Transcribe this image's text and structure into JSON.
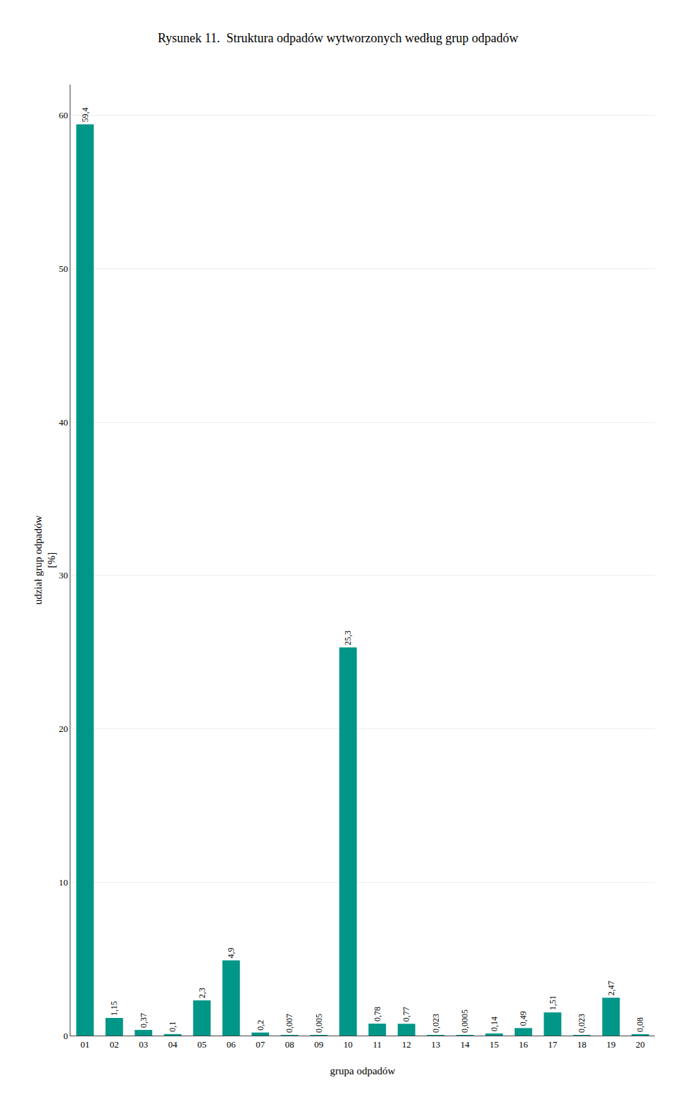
{
  "chart_data": {
    "type": "bar",
    "title": "Rysunek 11.  Struktura odpadów wytworzonych według grup odpadów",
    "xlabel": "grupa odpadów",
    "ylabel": "udział grup odpadów\n[%]",
    "categories": [
      "01",
      "02",
      "03",
      "04",
      "05",
      "06",
      "07",
      "08",
      "09",
      "10",
      "11",
      "12",
      "13",
      "14",
      "15",
      "16",
      "17",
      "18",
      "19",
      "20"
    ],
    "values": [
      59.4,
      1.15,
      0.37,
      0.1,
      2.3,
      4.9,
      0.2,
      0.007,
      0.005,
      25.3,
      0.78,
      0.77,
      0.023,
      0.0005,
      0.14,
      0.49,
      1.51,
      0.023,
      2.47,
      0.08
    ],
    "value_labels": [
      "59,4",
      "1,15",
      "0,37",
      "0,1",
      "2,3",
      "4,9",
      "0,2",
      "0,007",
      "0,005",
      "25,3",
      "0,78",
      "0,77",
      "0,023",
      "0,0005",
      "0,14",
      "0,49",
      "1,51",
      "0,023",
      "2,47",
      "0,08"
    ],
    "data_labels": true,
    "color": "#009688",
    "ylim": [
      0,
      62
    ],
    "yticks": [
      0,
      10,
      20,
      30,
      40,
      50,
      60
    ],
    "grid": true
  }
}
